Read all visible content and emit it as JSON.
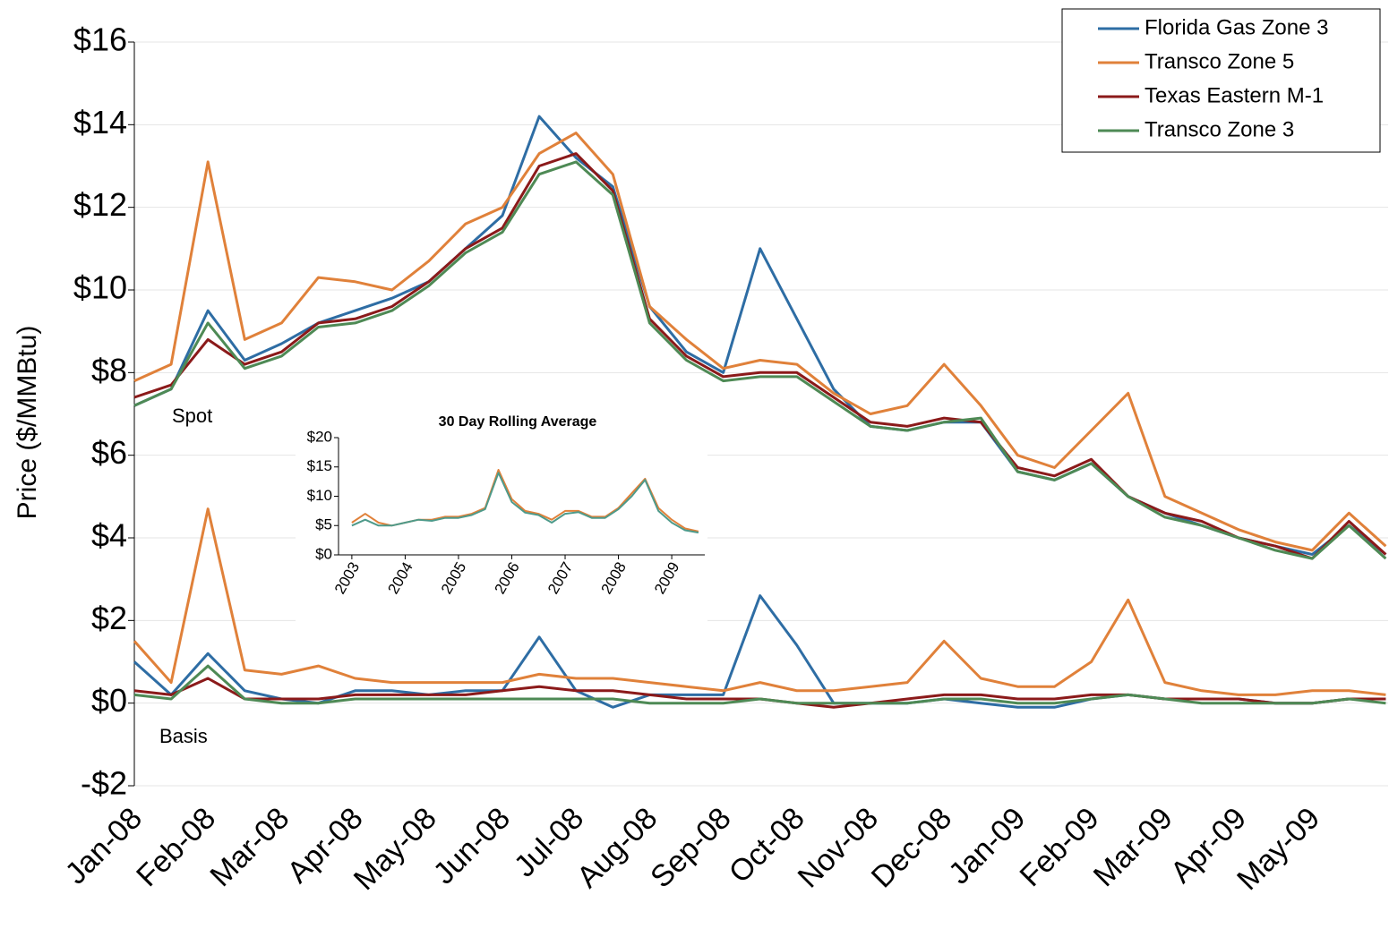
{
  "chart_data": [
    {
      "type": "line",
      "ylabel": "Price ($/MMBtu)",
      "annotations": [
        "Spot",
        "Basis"
      ],
      "categories": [
        "Jan-08",
        null,
        "Feb-08",
        null,
        "Mar-08",
        null,
        "Apr-08",
        null,
        "May-08",
        null,
        "Jun-08",
        null,
        "Jul-08",
        null,
        "Aug-08",
        null,
        "Sep-08",
        null,
        "Oct-08",
        null,
        "Nov-08",
        null,
        "Dec-08",
        null,
        "Jan-09",
        null,
        "Feb-09",
        null,
        "Mar-09",
        null,
        "Apr-09",
        null,
        "May-09",
        null,
        null
      ],
      "series": [
        {
          "name": "Florida Gas Zone 3",
          "color": "#2e6da4",
          "values": [
            7.2,
            7.6,
            9.5,
            8.3,
            8.7,
            9.2,
            9.5,
            9.8,
            10.2,
            11.0,
            11.8,
            14.2,
            13.2,
            12.5,
            9.6,
            8.5,
            8.0,
            11.0,
            9.3,
            7.6,
            6.7,
            6.6,
            6.8,
            6.8,
            5.6,
            5.4,
            5.8,
            5.0,
            4.6,
            4.3,
            4.0,
            3.8,
            3.6,
            4.3,
            3.6
          ],
          "basis_values": [
            1.0,
            0.2,
            1.2,
            0.3,
            0.1,
            0.0,
            0.3,
            0.3,
            0.2,
            0.3,
            0.3,
            1.6,
            0.3,
            -0.1,
            0.2,
            0.2,
            0.2,
            2.6,
            1.4,
            0.0,
            0.0,
            0.0,
            0.1,
            0.0,
            -0.1,
            -0.1,
            0.1,
            0.2,
            0.1,
            0.1,
            0.1,
            0.0,
            0.0,
            0.1,
            0.1
          ]
        },
        {
          "name": "Transco Zone 5",
          "color": "#e0813a",
          "values": [
            7.8,
            8.2,
            13.1,
            8.8,
            9.2,
            10.3,
            10.2,
            10.0,
            10.7,
            11.6,
            12.0,
            13.3,
            13.8,
            12.8,
            9.6,
            8.8,
            8.1,
            8.3,
            8.2,
            7.5,
            7.0,
            7.2,
            8.2,
            7.2,
            6.0,
            5.7,
            6.6,
            7.5,
            5.0,
            4.6,
            4.2,
            3.9,
            3.7,
            4.6,
            3.8
          ],
          "basis_values": [
            1.5,
            0.5,
            4.7,
            0.8,
            0.7,
            0.9,
            0.6,
            0.5,
            0.5,
            0.5,
            0.5,
            0.7,
            0.6,
            0.6,
            0.5,
            0.4,
            0.3,
            0.5,
            0.3,
            0.3,
            0.4,
            0.5,
            1.5,
            0.6,
            0.4,
            0.4,
            1.0,
            2.5,
            0.5,
            0.3,
            0.2,
            0.2,
            0.3,
            0.3,
            0.2
          ]
        },
        {
          "name": "Texas Eastern M-1",
          "color": "#8b1a1a",
          "values": [
            7.4,
            7.7,
            8.8,
            8.2,
            8.5,
            9.2,
            9.3,
            9.6,
            10.2,
            11.0,
            11.5,
            13.0,
            13.3,
            12.4,
            9.3,
            8.4,
            7.9,
            8.0,
            8.0,
            7.4,
            6.8,
            6.7,
            6.9,
            6.8,
            5.7,
            5.5,
            5.9,
            5.0,
            4.6,
            4.4,
            4.0,
            3.8,
            3.5,
            4.4,
            3.6
          ],
          "basis_values": [
            0.3,
            0.2,
            0.6,
            0.1,
            0.1,
            0.1,
            0.2,
            0.2,
            0.2,
            0.2,
            0.3,
            0.4,
            0.3,
            0.3,
            0.2,
            0.1,
            0.1,
            0.1,
            0.0,
            -0.1,
            0.0,
            0.1,
            0.2,
            0.2,
            0.1,
            0.1,
            0.2,
            0.2,
            0.1,
            0.1,
            0.1,
            0.0,
            0.0,
            0.1,
            0.1
          ]
        },
        {
          "name": "Transco Zone 3",
          "color": "#4e8a55",
          "values": [
            7.2,
            7.6,
            9.2,
            8.1,
            8.4,
            9.1,
            9.2,
            9.5,
            10.1,
            10.9,
            11.4,
            12.8,
            13.1,
            12.3,
            9.2,
            8.3,
            7.8,
            7.9,
            7.9,
            7.3,
            6.7,
            6.6,
            6.8,
            6.9,
            5.6,
            5.4,
            5.8,
            5.0,
            4.5,
            4.3,
            4.0,
            3.7,
            3.5,
            4.3,
            3.5
          ],
          "basis_values": [
            0.2,
            0.1,
            0.9,
            0.1,
            0.0,
            0.0,
            0.1,
            0.1,
            0.1,
            0.1,
            0.1,
            0.1,
            0.1,
            0.1,
            0.0,
            0.0,
            0.0,
            0.1,
            0.0,
            0.0,
            0.0,
            0.0,
            0.1,
            0.1,
            0.0,
            0.0,
            0.1,
            0.2,
            0.1,
            0.0,
            0.0,
            0.0,
            0.0,
            0.1,
            0.0
          ]
        }
      ],
      "ylim": [
        -2,
        16
      ],
      "yticks": [
        {
          "value": -2,
          "label": "-$2"
        },
        {
          "value": 0,
          "label": "$0"
        },
        {
          "value": 2,
          "label": "$2"
        },
        {
          "value": 4,
          "label": "$4"
        },
        {
          "value": 6,
          "label": "$6"
        },
        {
          "value": 8,
          "label": "$8"
        },
        {
          "value": 10,
          "label": "$10"
        },
        {
          "value": 12,
          "label": "$12"
        },
        {
          "value": 14,
          "label": "$14"
        },
        {
          "value": 16,
          "label": "$16"
        }
      ],
      "grid": true,
      "legend": "upper-right"
    },
    {
      "type": "line",
      "title": "30 Day Rolling Average",
      "x": [
        2003,
        2003.25,
        2003.5,
        2003.75,
        2004,
        2004.25,
        2004.5,
        2004.75,
        2005,
        2005.25,
        2005.5,
        2005.75,
        2006,
        2006.25,
        2006.5,
        2006.75,
        2007,
        2007.25,
        2007.5,
        2007.75,
        2008,
        2008.25,
        2008.5,
        2008.75,
        2009,
        2009.25,
        2009.5
      ],
      "series": [
        {
          "color": "#e0813a",
          "values": [
            5.5,
            7.0,
            5.5,
            5.0,
            5.5,
            6.0,
            6.0,
            6.5,
            6.5,
            7.0,
            8.0,
            14.5,
            9.5,
            7.5,
            7.0,
            6.0,
            7.5,
            7.5,
            6.5,
            6.5,
            8.0,
            10.5,
            13.0,
            8.0,
            6.0,
            4.5,
            4.0
          ]
        },
        {
          "color": "#4e9a8a",
          "values": [
            5.0,
            6.0,
            5.0,
            5.0,
            5.5,
            6.0,
            5.8,
            6.3,
            6.3,
            6.8,
            7.8,
            14.0,
            9.0,
            7.2,
            6.8,
            5.5,
            7.0,
            7.3,
            6.3,
            6.3,
            7.8,
            10.0,
            12.8,
            7.5,
            5.5,
            4.2,
            3.8
          ]
        }
      ],
      "xlim": [
        2002.75,
        2009.62
      ],
      "xticks": [
        2003,
        2004,
        2005,
        2006,
        2007,
        2008,
        2009
      ],
      "ylim": [
        0,
        20
      ],
      "yticks": [
        {
          "value": 0,
          "label": "$0"
        },
        {
          "value": 5,
          "label": "$5"
        },
        {
          "value": 10,
          "label": "$10"
        },
        {
          "value": 15,
          "label": "$15"
        },
        {
          "value": 20,
          "label": "$20"
        }
      ],
      "grid": false
    }
  ]
}
